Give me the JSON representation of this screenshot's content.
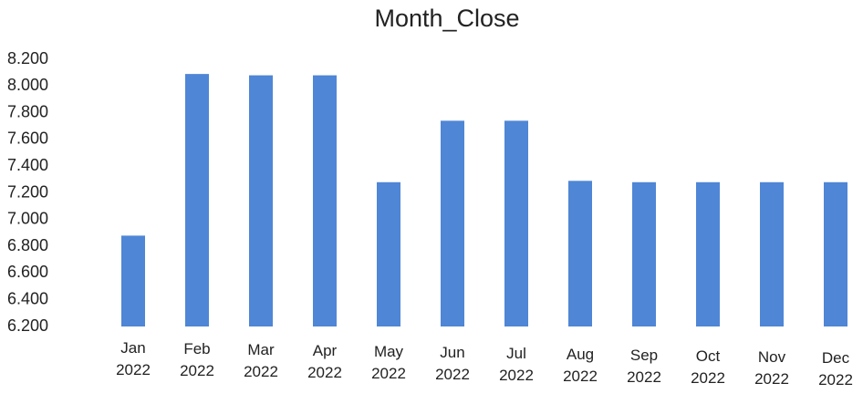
{
  "chart_data": {
    "type": "bar",
    "title": "Month_Close",
    "categories": [
      "Jan 2022",
      "Feb 2022",
      "Mar 2022",
      "Apr 2022",
      "May 2022",
      "Jun 2022",
      "Jul 2022",
      "Aug 2022",
      "Sep 2022",
      "Oct 2022",
      "Nov 2022",
      "Dec 2022"
    ],
    "values": [
      6.88,
      8.09,
      8.08,
      8.08,
      7.28,
      7.74,
      7.74,
      7.29,
      7.28,
      7.28,
      7.28,
      7.28
    ],
    "color": "#4f86d6",
    "ylim": [
      6.2,
      8.2
    ],
    "yticks": [
      {
        "value": 6.2,
        "label": "6.200"
      },
      {
        "value": 6.4,
        "label": "6.400"
      },
      {
        "value": 6.6,
        "label": "6.600"
      },
      {
        "value": 6.8,
        "label": "6.800"
      },
      {
        "value": 7.0,
        "label": "7.000"
      },
      {
        "value": 7.2,
        "label": "7.200"
      },
      {
        "value": 7.4,
        "label": "7.400"
      },
      {
        "value": 7.6,
        "label": "7.600"
      },
      {
        "value": 7.8,
        "label": "7.800"
      },
      {
        "value": 8.0,
        "label": "8.000"
      },
      {
        "value": 8.2,
        "label": "8.200"
      }
    ],
    "grid": false
  }
}
